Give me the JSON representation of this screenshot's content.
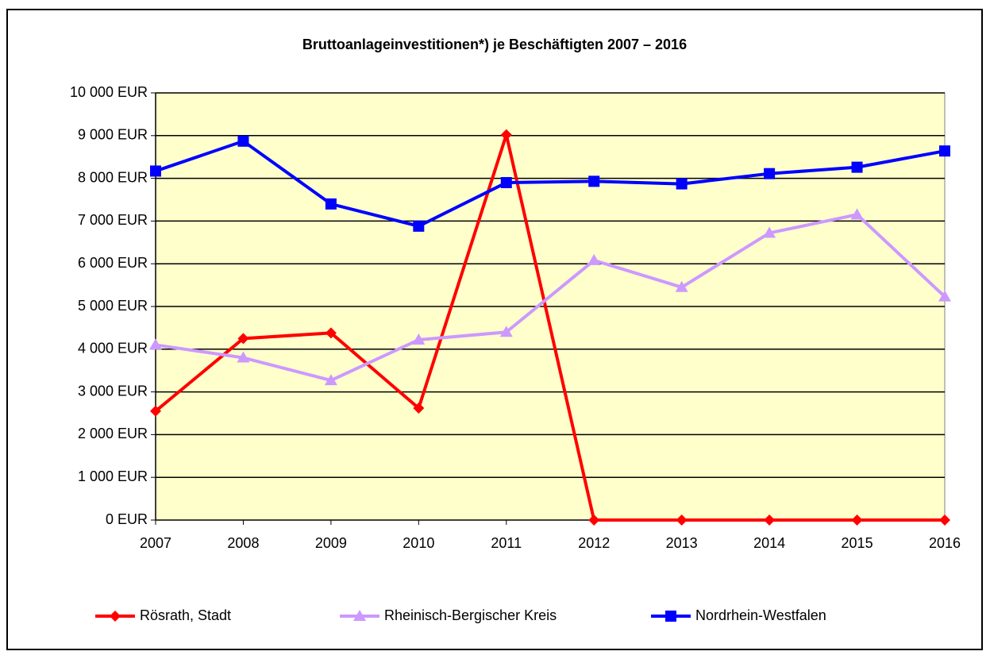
{
  "chart_data": {
    "type": "line",
    "title": "Bruttoanlageinvestitionen*) je Beschäftigten 2007 – 2016",
    "categories": [
      "2007",
      "2008",
      "2009",
      "2010",
      "2011",
      "2012",
      "2013",
      "2014",
      "2015",
      "2016"
    ],
    "series": [
      {
        "name": "Rösrath, Stadt",
        "color": "#ff0000",
        "marker": "diamond",
        "values": [
          2550,
          4250,
          4380,
          2620,
          9020,
          0,
          0,
          0,
          0,
          0
        ]
      },
      {
        "name": "Rheinisch-Bergischer Kreis",
        "color": "#cc99ff",
        "marker": "triangle",
        "values": [
          4100,
          3800,
          3270,
          4220,
          4400,
          6080,
          5450,
          6720,
          7150,
          5230
        ]
      },
      {
        "name": "Nordrhein-Westfalen",
        "color": "#0000ff",
        "marker": "square",
        "values": [
          8170,
          8870,
          7400,
          6880,
          7900,
          7930,
          7870,
          8110,
          8260,
          8640
        ]
      }
    ],
    "ylim": [
      0,
      10000
    ],
    "yticks": [
      {
        "value": 0,
        "label": "0 EUR"
      },
      {
        "value": 1000,
        "label": "1 000 EUR"
      },
      {
        "value": 2000,
        "label": "2 000 EUR"
      },
      {
        "value": 3000,
        "label": "3 000 EUR"
      },
      {
        "value": 4000,
        "label": "4 000 EUR"
      },
      {
        "value": 5000,
        "label": "5 000 EUR"
      },
      {
        "value": 6000,
        "label": "6 000 EUR"
      },
      {
        "value": 7000,
        "label": "7 000 EUR"
      },
      {
        "value": 8000,
        "label": "8 000 EUR"
      },
      {
        "value": 9000,
        "label": "9 000 EUR"
      },
      {
        "value": 10000,
        "label": "10 000 EUR"
      }
    ],
    "grid": true,
    "plot_background": "#ffffcc",
    "legend": "bottom"
  }
}
